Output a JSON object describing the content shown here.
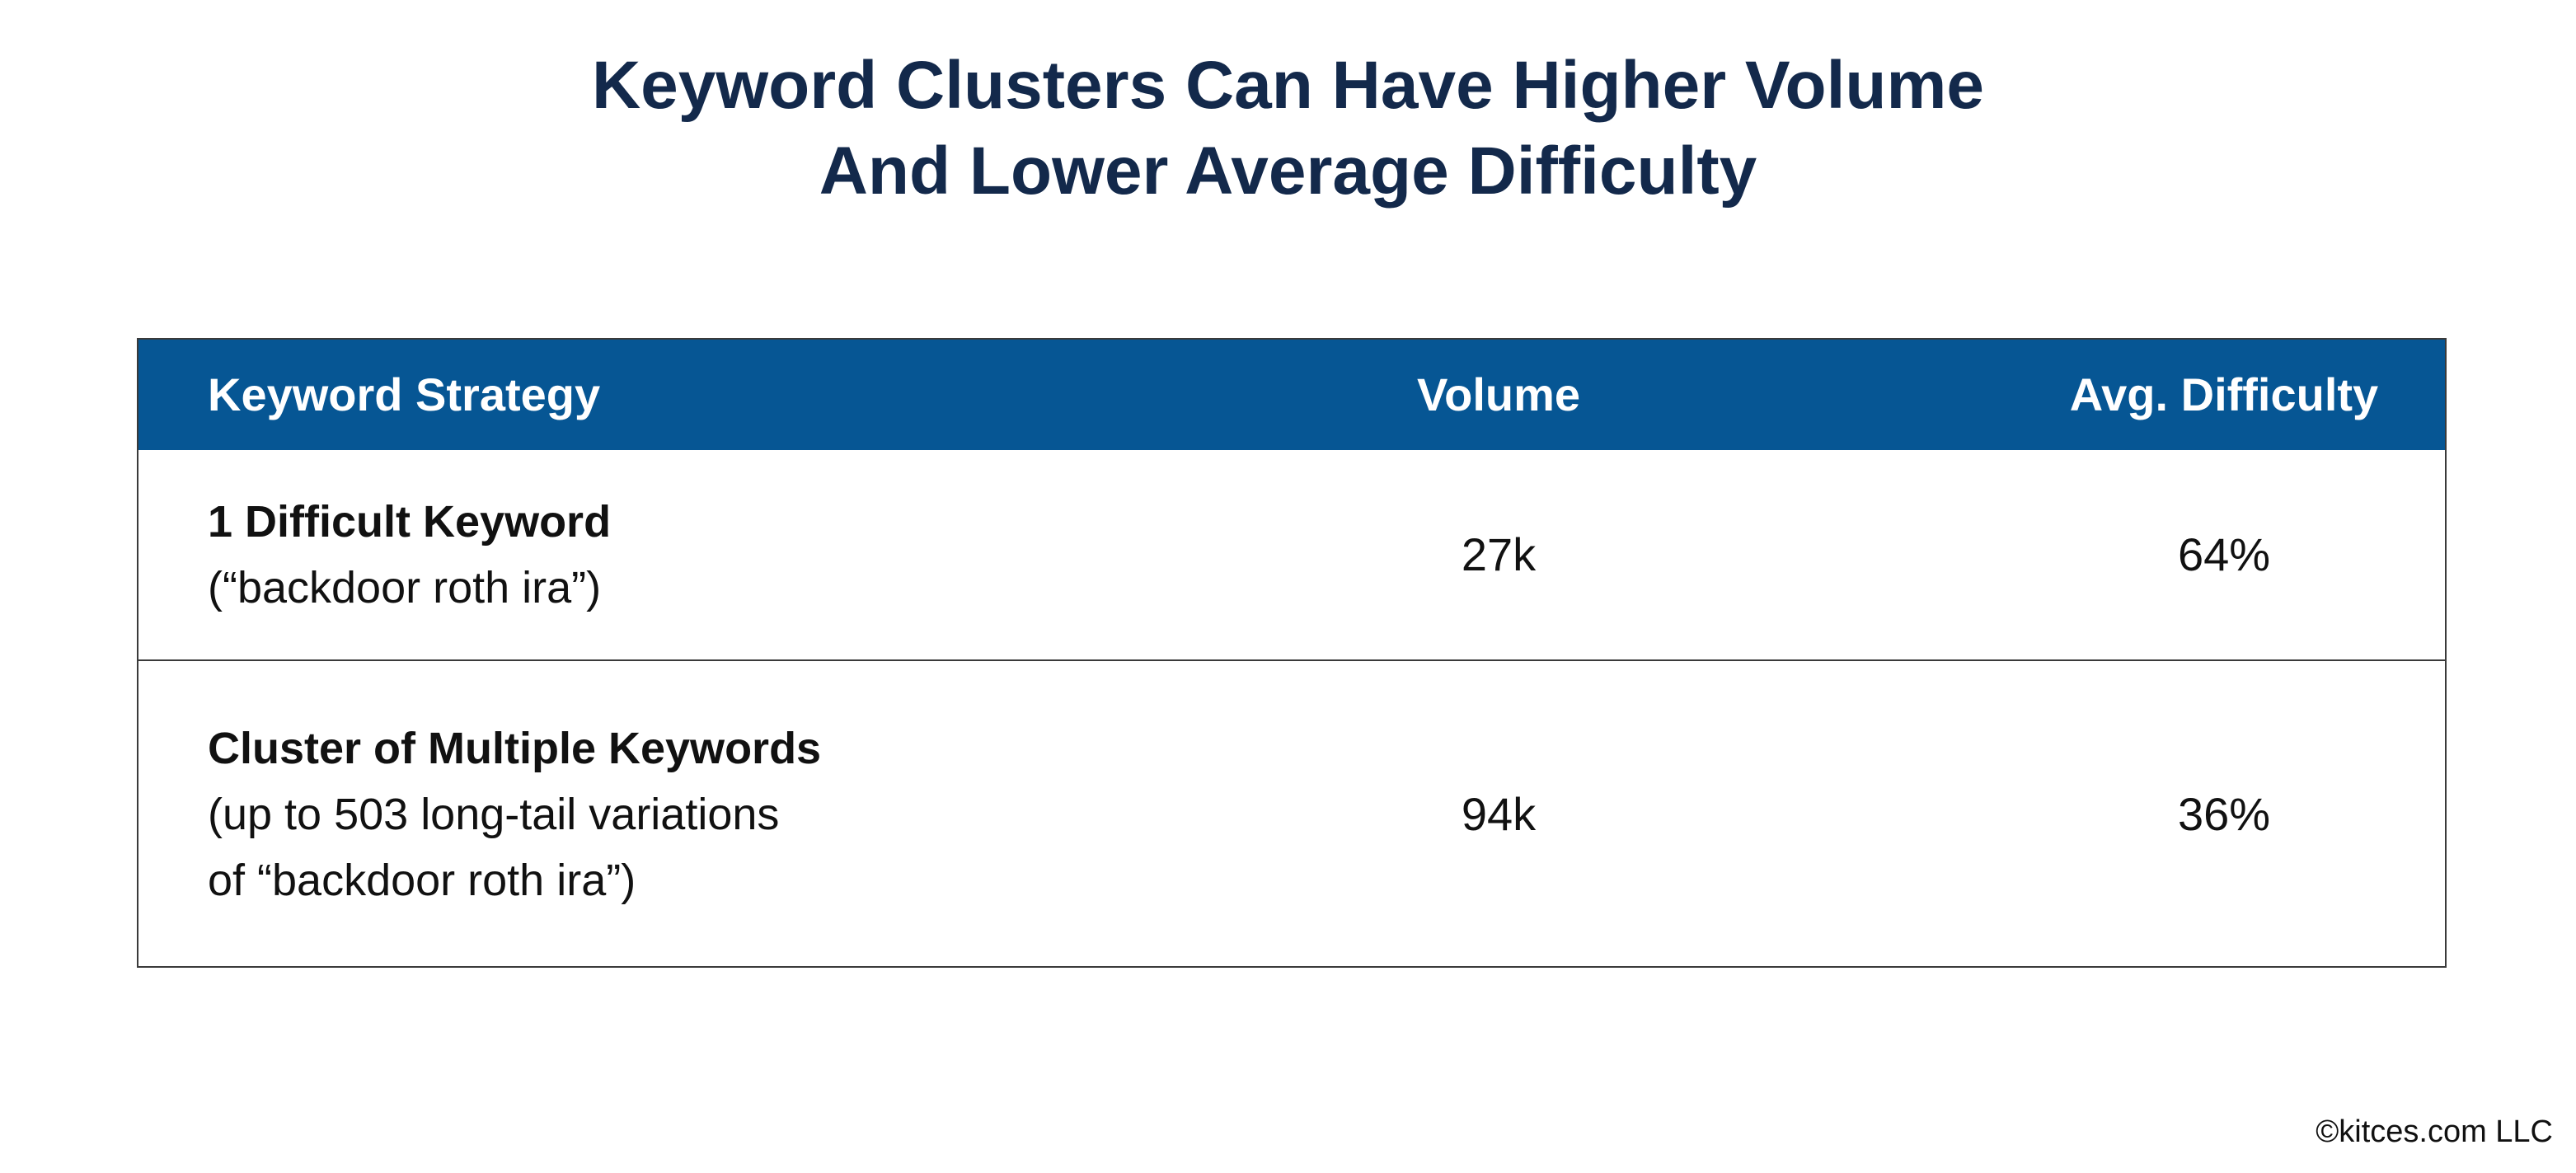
{
  "title": {
    "line1": "Keyword Clusters Can Have Higher Volume",
    "line2": "And Lower Average Difficulty"
  },
  "table": {
    "headers": [
      "Keyword Strategy",
      "Volume",
      "Avg. Difficulty"
    ],
    "rows": [
      {
        "strategy": "1 Difficult Keyword",
        "detail_lines": [
          "(“backdoor roth ira”)"
        ],
        "volume": "27k",
        "difficulty": "64%"
      },
      {
        "strategy": "Cluster of Multiple Keywords",
        "detail_lines": [
          "(up to 503 long-tail variations",
          "of “backdoor roth ira”)"
        ],
        "volume": "94k",
        "difficulty": "36%"
      }
    ]
  },
  "credit": "©kitces.com LLC",
  "colors": {
    "title": "#13294b",
    "header_bg": "#065694",
    "header_text": "#ffffff",
    "body_text": "#111111",
    "border": "#3a3a3a"
  }
}
